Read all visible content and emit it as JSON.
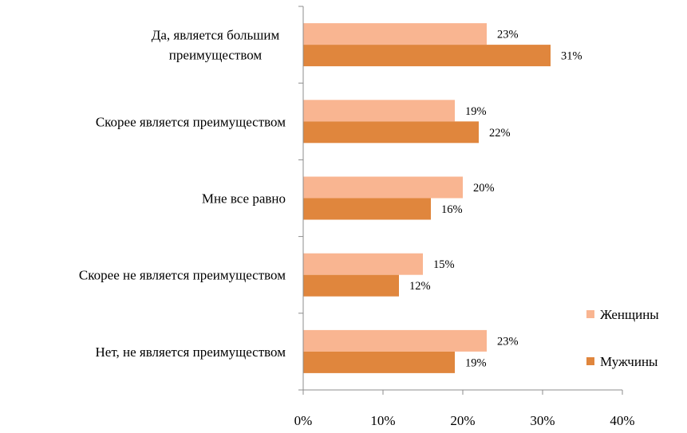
{
  "chart_data": {
    "type": "bar",
    "orientation": "horizontal",
    "categories": [
      [
        "Да, является большим",
        "преимуществом"
      ],
      [
        "Скорее является преимуществом"
      ],
      [
        "Мне все равно"
      ],
      [
        "Скорее не является преимуществом"
      ],
      [
        "Нет, не является преимуществом"
      ]
    ],
    "series": [
      {
        "name": "Женщины",
        "color": "#F9B591",
        "values": [
          23,
          19,
          20,
          15,
          23
        ]
      },
      {
        "name": "Мужчины",
        "color": "#E0863D",
        "values": [
          31,
          22,
          16,
          12,
          19
        ]
      }
    ],
    "xlim": [
      0,
      40
    ],
    "x_ticks": [
      0,
      10,
      20,
      30,
      40
    ],
    "tick_suffix": "%",
    "data_label_suffix": "%",
    "grid": false,
    "legend_position": "bottom-right"
  }
}
